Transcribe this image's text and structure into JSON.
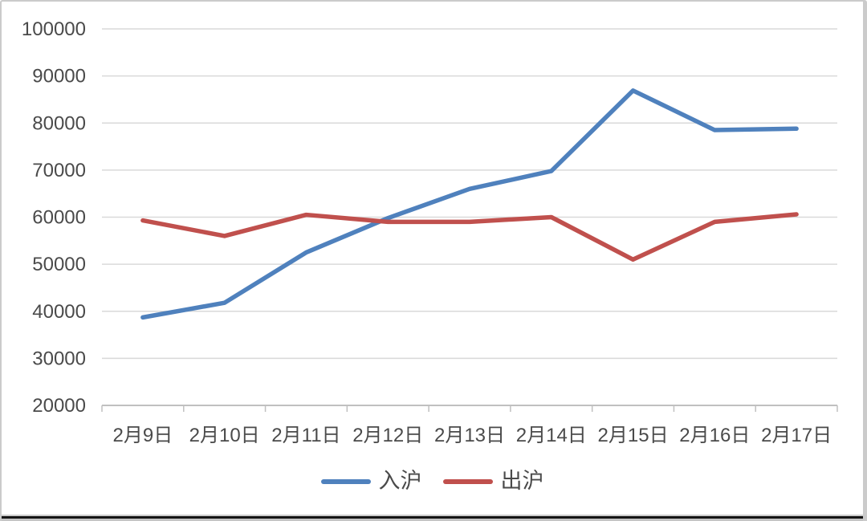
{
  "chart_data": {
    "type": "line",
    "categories": [
      "2月9日",
      "2月10日",
      "2月11日",
      "2月12日",
      "2月13日",
      "2月14日",
      "2月15日",
      "2月16日",
      "2月17日"
    ],
    "series": [
      {
        "name": "入沪",
        "color": "#4F81BD",
        "values": [
          38700,
          41800,
          52500,
          59800,
          66000,
          69800,
          86900,
          78500,
          78800
        ]
      },
      {
        "name": "出沪",
        "color": "#C0504D",
        "values": [
          59300,
          56000,
          60500,
          59000,
          59000,
          60000,
          51000,
          59000,
          60600
        ]
      }
    ],
    "title": "",
    "xlabel": "",
    "ylabel": "",
    "ylim": [
      20000,
      100000
    ],
    "ytick_step": 10000,
    "ytick_labels": [
      "20000",
      "30000",
      "40000",
      "50000",
      "60000",
      "70000",
      "80000",
      "90000",
      "100000"
    ],
    "grid": true,
    "legend_position": "bottom"
  },
  "legend": {
    "items": [
      {
        "label": "入沪",
        "color": "#4F81BD"
      },
      {
        "label": "出沪",
        "color": "#C0504D"
      }
    ]
  },
  "colors": {
    "background": "#ffffff",
    "grid": "#d9d9d9",
    "axis": "#c0c0c0",
    "text": "#4a4a4a",
    "frame_border": "#cbcbcb",
    "bottom_bar": "#141414",
    "series_blue": "#4F81BD",
    "series_red": "#C0504D"
  }
}
